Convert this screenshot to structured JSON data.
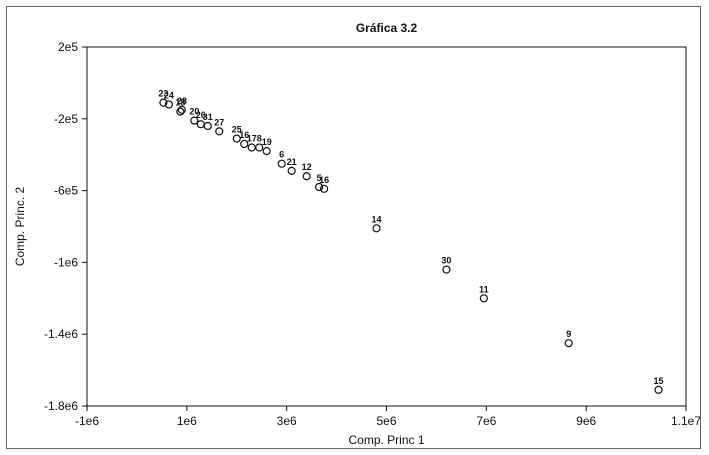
{
  "chart_data": {
    "type": "scatter",
    "title": "Gráfica 3.2",
    "xlabel": "Comp. Princ 1",
    "ylabel": "Comp. Princ. 2",
    "xlim": [
      -1000000,
      11000000
    ],
    "ylim": [
      -1800000,
      200000
    ],
    "xticks": [
      {
        "value": -1000000,
        "label": "-1e6"
      },
      {
        "value": 1000000,
        "label": "1e6"
      },
      {
        "value": 3000000,
        "label": "3e6"
      },
      {
        "value": 5000000,
        "label": "5e6"
      },
      {
        "value": 7000000,
        "label": "7e6"
      },
      {
        "value": 9000000,
        "label": "9e6"
      },
      {
        "value": 11000000,
        "label": "1.1e7"
      }
    ],
    "yticks": [
      {
        "value": 200000,
        "label": "2e5"
      },
      {
        "value": -200000,
        "label": "-2e5"
      },
      {
        "value": -600000,
        "label": "-6e5"
      },
      {
        "value": -1000000,
        "label": "-1e6"
      },
      {
        "value": -1400000,
        "label": "-1.4e6"
      },
      {
        "value": -1800000,
        "label": "-1.8e6"
      }
    ],
    "grid": false,
    "points": [
      {
        "label": "23",
        "x": 530000,
        "y": -110000
      },
      {
        "label": "24",
        "x": 640000,
        "y": -120000
      },
      {
        "label": "18",
        "x": 870000,
        "y": -160000
      },
      {
        "label": "28",
        "x": 900000,
        "y": -150000
      },
      {
        "label": "20",
        "x": 1150000,
        "y": -210000
      },
      {
        "label": "26",
        "x": 1280000,
        "y": -230000
      },
      {
        "label": "31",
        "x": 1420000,
        "y": -240000
      },
      {
        "label": "27",
        "x": 1650000,
        "y": -270000
      },
      {
        "label": "25",
        "x": 2000000,
        "y": -310000
      },
      {
        "label": "16",
        "x": 2150000,
        "y": -340000
      },
      {
        "label": "17",
        "x": 2300000,
        "y": -360000
      },
      {
        "label": "8",
        "x": 2450000,
        "y": -360000
      },
      {
        "label": "19",
        "x": 2600000,
        "y": -380000
      },
      {
        "label": "6",
        "x": 2900000,
        "y": -450000
      },
      {
        "label": "21",
        "x": 3100000,
        "y": -490000
      },
      {
        "label": "12",
        "x": 3400000,
        "y": -520000
      },
      {
        "label": "5",
        "x": 3650000,
        "y": -580000
      },
      {
        "label": "16",
        "x": 3750000,
        "y": -590000
      },
      {
        "label": "14",
        "x": 4800000,
        "y": -810000
      },
      {
        "label": "30",
        "x": 6200000,
        "y": -1040000
      },
      {
        "label": "11",
        "x": 6950000,
        "y": -1200000
      },
      {
        "label": "9",
        "x": 8650000,
        "y": -1450000
      },
      {
        "label": "15",
        "x": 10450000,
        "y": -1710000
      }
    ]
  }
}
